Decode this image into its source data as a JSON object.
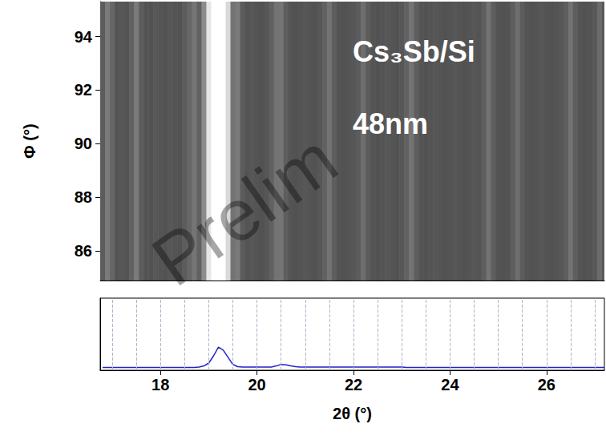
{
  "chart_data": [
    {
      "type": "image",
      "annotations": [
        "Cs₃Sb/Si",
        "48nm"
      ],
      "watermark": "Prelim",
      "x": [
        16.8,
        16.9,
        17.0,
        17.1,
        17.2,
        17.3,
        17.4,
        17.5,
        17.6,
        17.7,
        17.8,
        17.9,
        18.0,
        18.1,
        18.2,
        18.3,
        18.4,
        18.5,
        18.6,
        18.7,
        18.8,
        18.9,
        19.0,
        19.1,
        19.2,
        19.3,
        19.4,
        19.5,
        19.6,
        19.7,
        19.8,
        19.9,
        20.0,
        20.1,
        20.2,
        20.3,
        20.4,
        20.5,
        20.6,
        20.7,
        20.8,
        20.9,
        21.0,
        21.1,
        21.2,
        21.3,
        21.4,
        21.5,
        21.6,
        21.7,
        21.8,
        21.9,
        22.0,
        22.1,
        22.2,
        22.3,
        22.4,
        22.5,
        22.6,
        22.7,
        22.8,
        22.9,
        23.0,
        23.1,
        23.2,
        23.3,
        23.4,
        23.5,
        23.6,
        23.7,
        23.8,
        23.9,
        24.0,
        24.1,
        24.2,
        24.3,
        24.4,
        24.5,
        24.6,
        24.7,
        24.8,
        24.9,
        25.0,
        25.1,
        25.2,
        25.3,
        25.4,
        25.5,
        25.6,
        25.7,
        25.8,
        25.9,
        26.0,
        26.1,
        26.2,
        26.3,
        26.4,
        26.5,
        26.6,
        26.7,
        26.8,
        26.9,
        27.0,
        27.1,
        27.2
      ],
      "intensity": [
        0.36,
        0.48,
        0.4,
        0.33,
        0.34,
        0.33,
        0.38,
        0.48,
        0.36,
        0.33,
        0.32,
        0.34,
        0.33,
        0.32,
        0.34,
        0.33,
        0.32,
        0.36,
        0.4,
        0.46,
        0.38,
        0.55,
        0.9,
        1.0,
        1.0,
        1.0,
        0.85,
        0.45,
        0.48,
        0.36,
        0.33,
        0.34,
        0.33,
        0.32,
        0.34,
        0.38,
        0.45,
        0.46,
        0.37,
        0.33,
        0.32,
        0.33,
        0.34,
        0.33,
        0.32,
        0.34,
        0.38,
        0.45,
        0.37,
        0.33,
        0.32,
        0.33,
        0.34,
        0.36,
        0.43,
        0.36,
        0.33,
        0.32,
        0.33,
        0.34,
        0.33,
        0.32,
        0.34,
        0.38,
        0.45,
        0.37,
        0.33,
        0.32,
        0.33,
        0.34,
        0.33,
        0.32,
        0.33,
        0.34,
        0.33,
        0.32,
        0.33,
        0.34,
        0.33,
        0.37,
        0.45,
        0.37,
        0.33,
        0.32,
        0.33,
        0.37,
        0.43,
        0.36,
        0.33,
        0.32,
        0.33,
        0.34,
        0.33,
        0.32,
        0.33,
        0.34,
        0.37,
        0.45,
        0.37,
        0.33,
        0.32,
        0.33,
        0.35,
        0.42,
        0.35
      ],
      "xlim": [
        16.75,
        27.2
      ],
      "ylim": [
        84.9,
        95.3
      ],
      "yticks": [
        86,
        88,
        90,
        92,
        94
      ],
      "y_label": "Φ (°)",
      "tick_labels": "y"
    },
    {
      "type": "line",
      "x": [
        16.8,
        16.9,
        17.0,
        17.1,
        17.2,
        17.3,
        17.4,
        17.5,
        17.6,
        17.7,
        17.8,
        17.9,
        18.0,
        18.1,
        18.2,
        18.3,
        18.4,
        18.5,
        18.6,
        18.7,
        18.8,
        18.9,
        19.0,
        19.1,
        19.2,
        19.3,
        19.4,
        19.5,
        19.6,
        19.7,
        19.8,
        19.9,
        20.0,
        20.1,
        20.2,
        20.3,
        20.4,
        20.5,
        20.6,
        20.7,
        20.8,
        20.9,
        21.0,
        21.1,
        21.2,
        21.3,
        21.4,
        21.5,
        21.6,
        21.7,
        21.8,
        21.9,
        22.0,
        22.1,
        22.2,
        22.3,
        22.4,
        22.5,
        22.6,
        22.7,
        22.8,
        22.9,
        23.0,
        23.1,
        23.2,
        23.3,
        23.4,
        23.5,
        23.6,
        23.7,
        23.8,
        23.9,
        24.0,
        24.1,
        24.2,
        24.3,
        24.4,
        24.5,
        24.6,
        24.7,
        24.8,
        24.9,
        25.0,
        25.1,
        25.2,
        25.3,
        25.4,
        25.5,
        25.6,
        25.7,
        25.8,
        25.9,
        26.0,
        26.1,
        26.2,
        26.3,
        26.4,
        26.5,
        26.6,
        26.7,
        26.8,
        26.9,
        27.0,
        27.1,
        27.2
      ],
      "values": [
        4,
        4,
        4,
        4,
        4,
        4,
        4,
        4,
        4,
        4,
        4,
        4,
        4,
        4,
        4,
        4,
        4,
        4,
        4,
        4,
        4.5,
        6,
        10,
        20,
        32,
        28,
        18,
        8,
        5,
        4.5,
        4.5,
        4.5,
        4.5,
        4.5,
        4.5,
        4.5,
        6,
        8,
        7.5,
        6,
        5,
        4.5,
        4.5,
        4.5,
        4.5,
        4.5,
        4.5,
        4.5,
        4.5,
        4.5,
        4.5,
        4.5,
        4.5,
        4.5,
        4.5,
        4.5,
        4.5,
        4.5,
        4.5,
        4.5,
        4.5,
        4.5,
        4.5,
        4,
        4,
        4,
        4,
        4,
        4,
        4,
        4,
        4,
        4,
        4,
        4,
        4,
        4,
        4,
        4,
        4,
        4,
        4,
        4,
        4,
        4,
        4,
        4,
        4,
        4,
        4,
        4,
        4,
        4,
        4,
        4,
        4,
        4,
        4,
        4,
        4,
        4,
        4,
        4,
        4,
        4
      ],
      "color": "#2323c8",
      "xlim": [
        16.75,
        27.2
      ],
      "xticks": [
        18,
        20,
        22,
        24,
        26
      ],
      "ylim": [
        0,
        100
      ],
      "x_label": "2θ (°)",
      "grid": true,
      "tick_labels": "x"
    }
  ]
}
